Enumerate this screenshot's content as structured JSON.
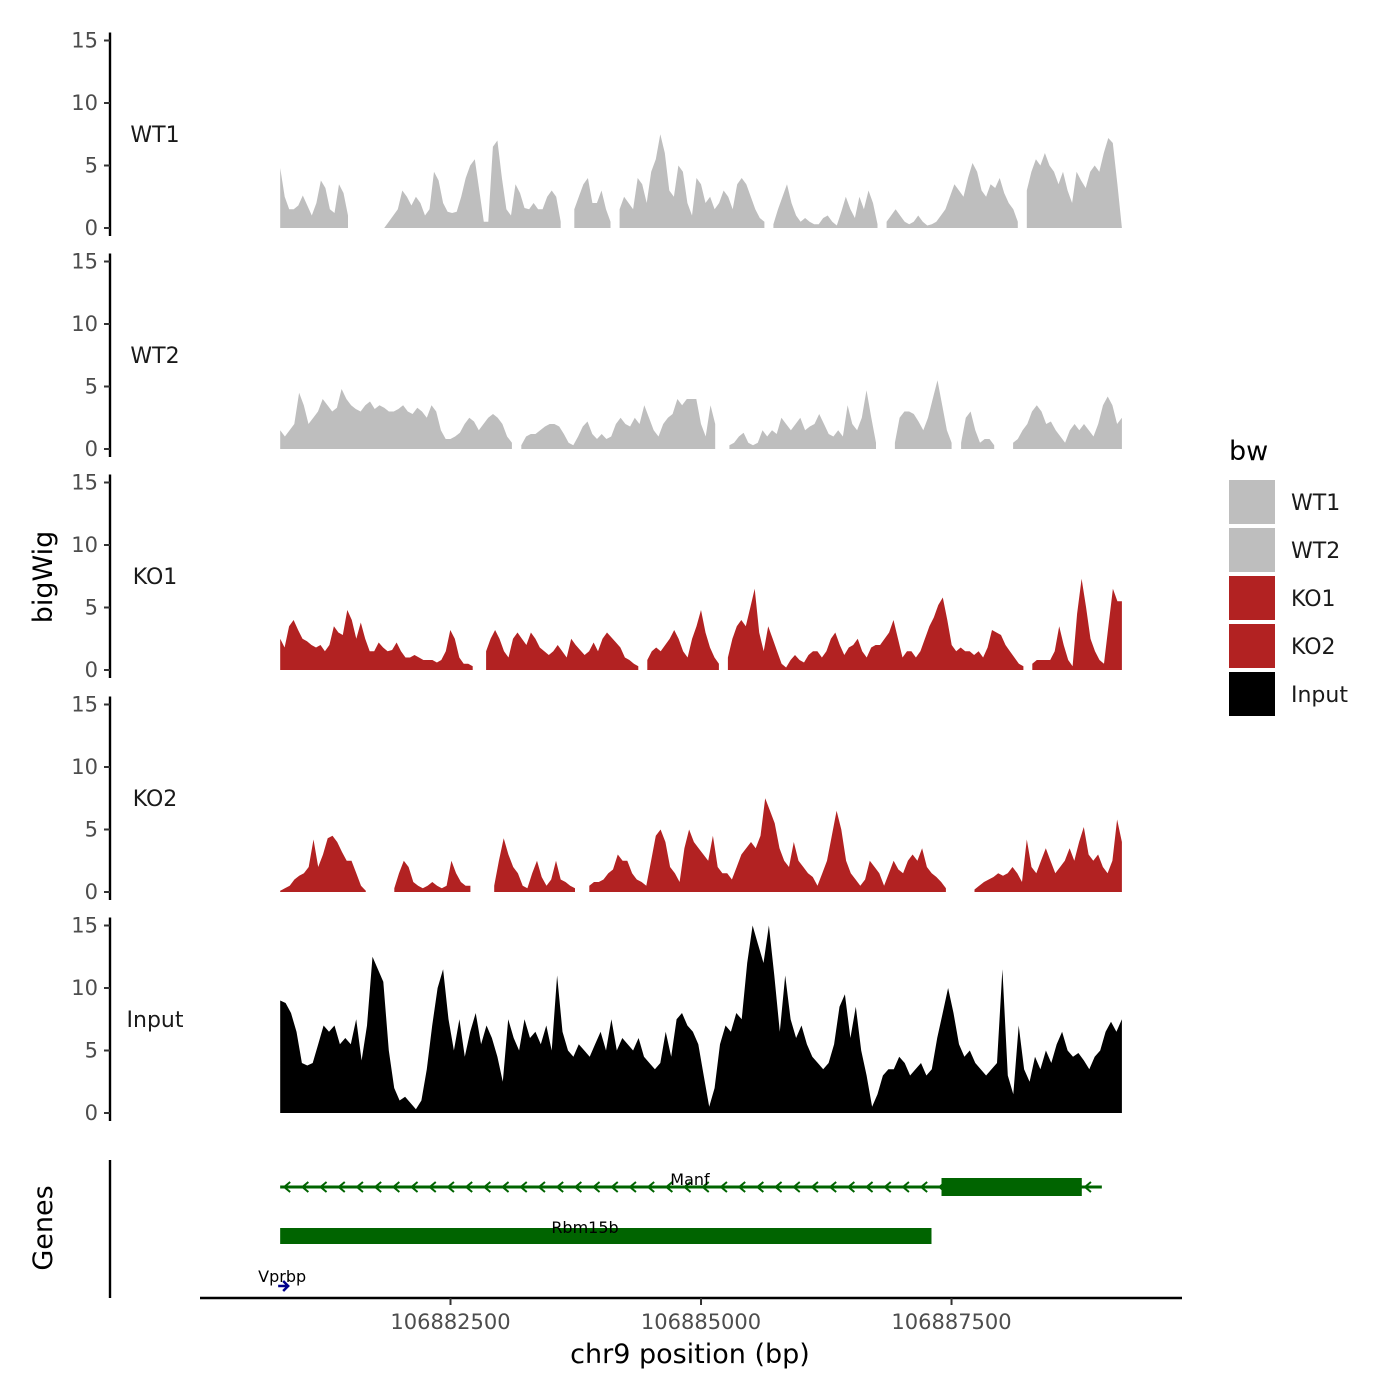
{
  "chart_data": {
    "type": "area",
    "x_axis": {
      "title": "chr9 position (bp)",
      "range": [
        106880000,
        106889800
      ],
      "ticks": [
        106882500,
        106885000,
        106887500
      ],
      "tick_labels": [
        "106882500",
        "106885000",
        "106887500"
      ]
    },
    "y_axis": {
      "title": "bigWig",
      "range": [
        0,
        15
      ],
      "ticks": [
        0,
        5,
        10,
        15
      ],
      "tick_labels": [
        "0",
        "5",
        "10",
        "15"
      ]
    },
    "gene_axis_title": "Genes",
    "legend": {
      "title": "bw",
      "placement": "right",
      "entries": [
        {
          "label": "WT1",
          "color": "#bebebe"
        },
        {
          "label": "WT2",
          "color": "#bebebe"
        },
        {
          "label": "KO1",
          "color": "#b22222"
        },
        {
          "label": "KO2",
          "color": "#b22222"
        },
        {
          "label": "Input",
          "color": "#000000"
        }
      ]
    },
    "series": [
      {
        "name": "WT1",
        "color": "#bebebe",
        "x_start": 106880800,
        "x_end": 106889200,
        "values": [
          4.8,
          2.5,
          1.5,
          1.5,
          1.8,
          2.6,
          1.8,
          1.0,
          2.0,
          3.8,
          3.2,
          1.5,
          1.2,
          3.5,
          2.8,
          1.0,
          null,
          null,
          null,
          null,
          null,
          null,
          null,
          0.0,
          0.5,
          1.0,
          1.5,
          3.0,
          2.5,
          1.8,
          2.5,
          2.0,
          1.0,
          1.5,
          4.5,
          3.8,
          2.0,
          1.3,
          1.2,
          1.3,
          2.5,
          4.0,
          5.0,
          5.5,
          3.0,
          0.5,
          0.5,
          6.5,
          7.0,
          4.0,
          1.5,
          1.0,
          3.5,
          2.8,
          1.6,
          1.5,
          2.0,
          1.5,
          1.5,
          2.5,
          3.0,
          2.5,
          0.5,
          null,
          null,
          1.5,
          2.5,
          3.5,
          4.0,
          2.0,
          2.0,
          3.0,
          1.5,
          0.5,
          null,
          1.5,
          2.5,
          2.0,
          1.5,
          4.0,
          3.5,
          2.0,
          4.5,
          5.5,
          7.5,
          6.0,
          3.0,
          2.5,
          5.0,
          4.5,
          2.0,
          1.0,
          4.0,
          3.5,
          2.0,
          2.5,
          1.5,
          2.0,
          3.0,
          2.5,
          1.5,
          3.5,
          4.0,
          3.5,
          2.5,
          1.5,
          0.8,
          0.5,
          null,
          0.3,
          1.5,
          2.5,
          3.5,
          2.0,
          1.0,
          0.5,
          0.8,
          0.5,
          0.3,
          0.3,
          0.8,
          1.0,
          0.5,
          0.2,
          1.3,
          2.5,
          1.5,
          0.8,
          2.5,
          1.5,
          3.0,
          2.0,
          0.3,
          null,
          0.5,
          1.0,
          1.5,
          1.0,
          0.5,
          0.3,
          0.5,
          1.0,
          0.5,
          0.2,
          0.3,
          0.5,
          1.0,
          1.5,
          2.5,
          3.5,
          3.0,
          2.5,
          4.0,
          5.2,
          4.5,
          3.0,
          2.5,
          3.5,
          3.2,
          4.0,
          2.8,
          2.0,
          1.5,
          0.5,
          null,
          3.0,
          4.5,
          5.5,
          5.0,
          6.0,
          5.0,
          4.5,
          3.5,
          4.5,
          3.0,
          2.0,
          4.5,
          3.8,
          3.2,
          4.5,
          5.0,
          4.5,
          6.0,
          7.2,
          6.8,
          3.5,
          0.0
        ]
      },
      {
        "name": "WT2",
        "color": "#bebebe",
        "x_start": 106880800,
        "x_end": 106889200,
        "values": [
          1.5,
          1.0,
          1.5,
          2.0,
          4.5,
          3.5,
          2.0,
          2.5,
          3.0,
          4.0,
          3.5,
          3.0,
          3.3,
          4.8,
          4.0,
          3.5,
          3.2,
          3.0,
          3.5,
          3.8,
          3.2,
          3.5,
          3.3,
          3.0,
          3.0,
          3.2,
          3.5,
          3.0,
          2.8,
          3.3,
          3.0,
          2.5,
          3.5,
          3.0,
          1.5,
          0.8,
          0.8,
          1.0,
          1.3,
          2.0,
          2.5,
          2.2,
          1.5,
          2.0,
          2.5,
          2.8,
          2.5,
          2.0,
          1.0,
          0.5,
          null,
          0.3,
          1.0,
          1.2,
          1.2,
          1.5,
          1.8,
          2.0,
          2.0,
          1.8,
          1.2,
          0.5,
          0.3,
          1.0,
          1.8,
          2.2,
          1.2,
          0.8,
          1.2,
          0.8,
          1.0,
          2.0,
          2.5,
          2.0,
          1.8,
          2.5,
          2.0,
          3.5,
          2.5,
          1.5,
          1.0,
          2.0,
          2.5,
          2.8,
          4.0,
          3.5,
          4.0,
          4.0,
          4.0,
          2.0,
          1.0,
          3.5,
          2.0,
          null,
          null,
          0.3,
          0.5,
          1.0,
          1.3,
          0.5,
          0.3,
          0.5,
          1.5,
          1.0,
          1.5,
          1.2,
          2.5,
          2.0,
          1.5,
          2.0,
          2.5,
          1.5,
          1.8,
          2.0,
          2.8,
          2.0,
          1.2,
          1.0,
          1.5,
          1.0,
          3.5,
          2.0,
          1.5,
          2.5,
          4.7,
          2.5,
          0.5,
          null,
          null,
          null,
          0.5,
          2.5,
          3.0,
          3.0,
          2.8,
          2.2,
          1.5,
          2.5,
          4.0,
          5.5,
          3.5,
          1.5,
          0.5,
          null,
          0.5,
          2.5,
          3.0,
          1.5,
          0.5,
          0.8,
          0.8,
          0.3,
          null,
          null,
          null,
          0.5,
          0.8,
          1.5,
          2.0,
          3.0,
          3.5,
          3.0,
          2.0,
          2.2,
          1.5,
          1.0,
          0.5,
          1.5,
          2.0,
          1.5,
          2.0,
          1.5,
          1.0,
          2.0,
          3.5,
          4.2,
          3.5,
          2.0,
          2.5
        ]
      },
      {
        "name": "KO1",
        "color": "#b22222",
        "x_start": 106880800,
        "x_end": 106889200,
        "values": [
          2.5,
          1.8,
          3.5,
          4.0,
          3.2,
          2.5,
          2.3,
          2.0,
          1.8,
          2.0,
          1.5,
          2.0,
          3.5,
          3.0,
          2.8,
          4.8,
          4.0,
          2.5,
          3.8,
          2.5,
          1.5,
          1.5,
          2.2,
          1.8,
          1.5,
          1.6,
          2.2,
          1.5,
          1.0,
          1.0,
          1.2,
          1.0,
          0.8,
          0.8,
          0.8,
          0.6,
          0.8,
          1.5,
          3.2,
          2.5,
          1.0,
          0.5,
          0.5,
          0.3,
          null,
          null,
          1.5,
          2.5,
          3.2,
          2.5,
          1.5,
          1.0,
          2.5,
          3.0,
          2.5,
          2.0,
          3.0,
          2.5,
          1.8,
          1.5,
          1.2,
          1.5,
          2.0,
          1.5,
          1.0,
          2.5,
          2.0,
          1.6,
          1.2,
          1.5,
          2.2,
          1.5,
          2.5,
          3.0,
          2.6,
          2.2,
          1.8,
          1.0,
          0.8,
          0.5,
          0.3,
          null,
          0.8,
          1.5,
          1.8,
          1.5,
          2.0,
          2.5,
          3.2,
          2.5,
          1.5,
          1.0,
          2.5,
          3.5,
          4.8,
          3.0,
          1.8,
          1.0,
          0.5,
          null,
          1.0,
          2.5,
          3.5,
          4.0,
          3.5,
          5.0,
          6.5,
          3.0,
          1.5,
          3.5,
          2.5,
          1.5,
          0.5,
          0.2,
          0.8,
          1.2,
          0.8,
          0.6,
          1.2,
          1.5,
          1.5,
          1.0,
          1.5,
          2.5,
          3.0,
          2.0,
          1.2,
          1.8,
          2.0,
          2.5,
          1.5,
          1.0,
          1.8,
          2.0,
          2.0,
          2.5,
          3.0,
          4.0,
          2.5,
          1.0,
          1.5,
          1.5,
          1.0,
          1.5,
          2.5,
          3.5,
          4.2,
          5.2,
          5.8,
          4.0,
          2.0,
          1.5,
          1.8,
          1.5,
          1.5,
          1.2,
          1.5,
          1.0,
          1.8,
          3.2,
          3.0,
          2.8,
          2.0,
          1.5,
          1.0,
          0.5,
          0.3,
          null,
          0.5,
          0.8,
          0.8,
          0.8,
          0.8,
          1.5,
          3.5,
          2.0,
          0.8,
          0.3,
          4.5,
          7.3,
          5.0,
          2.5,
          1.5,
          0.8,
          0.5,
          3.5,
          6.5,
          5.5,
          5.5
        ]
      },
      {
        "name": "KO2",
        "color": "#b22222",
        "x_start": 106880800,
        "x_end": 106889200,
        "values": [
          0.1,
          0.3,
          0.5,
          1.0,
          1.3,
          1.5,
          2.0,
          4.2,
          2.0,
          3.0,
          4.3,
          4.5,
          4.0,
          3.2,
          2.5,
          2.5,
          1.5,
          0.5,
          0.1,
          null,
          null,
          null,
          null,
          null,
          0.3,
          1.5,
          2.5,
          2.0,
          0.8,
          0.5,
          0.3,
          0.5,
          0.8,
          0.5,
          0.3,
          0.5,
          2.5,
          1.5,
          0.8,
          0.5,
          0.5,
          null,
          null,
          null,
          null,
          0.5,
          2.5,
          4.3,
          3.0,
          2.0,
          1.5,
          0.5,
          0.3,
          1.5,
          2.5,
          1.2,
          0.5,
          1.0,
          2.5,
          1.0,
          0.8,
          0.5,
          0.3,
          null,
          null,
          0.5,
          0.8,
          0.8,
          1.0,
          1.5,
          1.8,
          3.0,
          2.5,
          2.5,
          1.5,
          1.0,
          0.8,
          0.5,
          2.5,
          4.5,
          5.0,
          4.0,
          2.0,
          1.5,
          0.8,
          3.5,
          5.0,
          4.0,
          3.5,
          3.0,
          2.5,
          4.5,
          2.0,
          1.5,
          1.5,
          1.0,
          2.0,
          3.0,
          3.5,
          4.0,
          3.5,
          4.5,
          7.5,
          6.5,
          5.5,
          3.5,
          2.5,
          2.0,
          4.0,
          2.5,
          2.0,
          1.5,
          1.2,
          0.5,
          1.5,
          2.5,
          4.5,
          6.5,
          5.0,
          2.5,
          1.5,
          1.0,
          0.5,
          1.0,
          2.5,
          2.0,
          1.5,
          0.5,
          1.5,
          2.5,
          1.8,
          1.5,
          2.5,
          3.0,
          2.5,
          3.5,
          2.0,
          1.5,
          1.2,
          0.8,
          0.3,
          null,
          null,
          null,
          null,
          null,
          0.2,
          0.5,
          0.8,
          1.0,
          1.2,
          1.5,
          1.3,
          1.5,
          2.0,
          1.5,
          0.8,
          4.2,
          2.0,
          1.5,
          2.5,
          3.5,
          2.5,
          1.5,
          2.0,
          2.5,
          3.5,
          2.5,
          4.0,
          5.2,
          3.0,
          2.5,
          3.0,
          2.0,
          1.5,
          2.5,
          5.8,
          4.0
        ]
      },
      {
        "name": "Input",
        "color": "#000000",
        "x_start": 106880800,
        "x_end": 106889200,
        "values": [
          9.0,
          8.8,
          8.0,
          6.5,
          4.0,
          3.8,
          4.0,
          5.5,
          7.0,
          6.5,
          7.0,
          5.5,
          6.0,
          5.5,
          7.5,
          4.2,
          7.0,
          12.5,
          11.5,
          10.5,
          5.0,
          2.0,
          1.0,
          1.3,
          0.8,
          0.3,
          1.0,
          3.5,
          7.0,
          10.0,
          11.5,
          7.5,
          5.0,
          7.5,
          4.5,
          6.5,
          8.0,
          5.5,
          7.0,
          6.0,
          4.5,
          2.5,
          7.5,
          6.0,
          5.0,
          7.5,
          6.0,
          6.5,
          5.5,
          7.0,
          5.0,
          11.0,
          6.5,
          5.0,
          4.5,
          5.5,
          5.0,
          4.5,
          5.5,
          6.5,
          5.0,
          7.5,
          5.0,
          6.0,
          5.5,
          5.0,
          6.0,
          4.5,
          4.0,
          3.5,
          4.0,
          6.5,
          4.5,
          7.5,
          8.0,
          7.0,
          6.5,
          5.5,
          3.0,
          0.5,
          2.0,
          5.5,
          7.0,
          6.5,
          8.0,
          7.5,
          12.0,
          15.0,
          13.5,
          12.0,
          15.0,
          11.0,
          6.5,
          11.0,
          7.5,
          6.0,
          7.0,
          5.5,
          4.5,
          4.0,
          3.5,
          4.0,
          5.5,
          8.5,
          9.5,
          6.0,
          8.5,
          5.0,
          3.0,
          0.5,
          1.5,
          3.0,
          3.5,
          3.5,
          4.5,
          4.0,
          3.0,
          3.5,
          4.0,
          3.0,
          3.5,
          6.0,
          8.0,
          10.0,
          8.0,
          5.5,
          4.5,
          5.0,
          4.0,
          3.5,
          3.0,
          3.5,
          4.0,
          11.5,
          3.0,
          1.5,
          7.0,
          3.5,
          2.5,
          4.5,
          3.5,
          5.0,
          4.0,
          5.5,
          6.5,
          5.0,
          4.5,
          4.8,
          4.2,
          3.5,
          4.5,
          5.0,
          6.5,
          7.3,
          6.5,
          7.5
        ]
      }
    ],
    "genes": [
      {
        "name": "Manf",
        "start": 106880800,
        "end": 106889000,
        "strand": "-",
        "cds_start": 106887400,
        "cds_end": 106888800,
        "color": "#006400"
      },
      {
        "name": "Rbm15b",
        "start": 106880800,
        "end": 106887300,
        "strand": "+",
        "cds_start": 106880800,
        "cds_end": 106887300,
        "color": "#006400"
      },
      {
        "name": "Vprbp",
        "start": 106880800,
        "end": 106880850,
        "strand": "+",
        "color": "#00008b"
      }
    ]
  }
}
